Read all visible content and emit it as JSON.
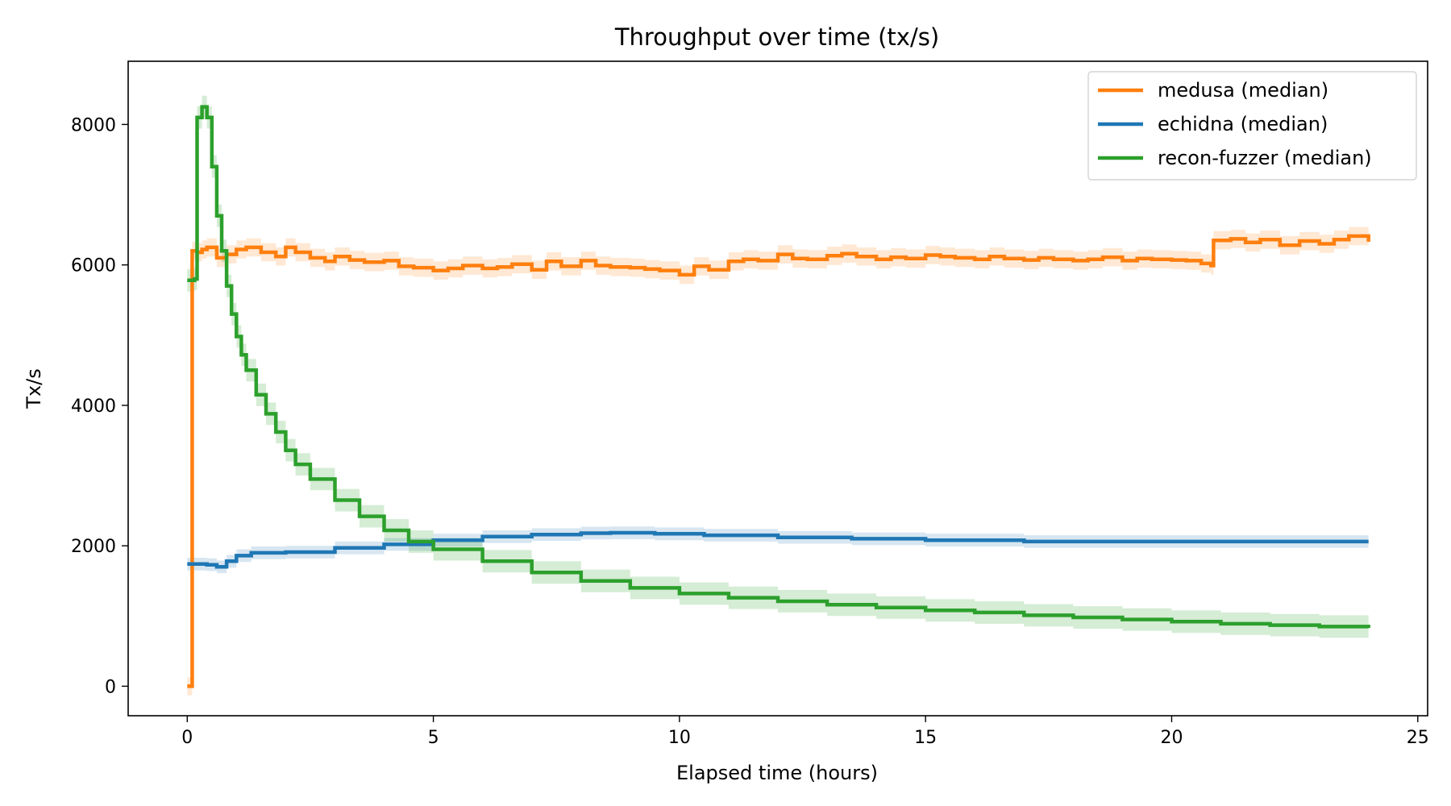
{
  "chart_data": {
    "type": "line",
    "title": "Throughput over time (tx/s)",
    "xlabel": "Elapsed time (hours)",
    "ylabel": "Tx/s",
    "xlim": [
      -1.2,
      25.2
    ],
    "ylim": [
      -420,
      8900
    ],
    "xticks": [
      0,
      5,
      10,
      15,
      20,
      25
    ],
    "yticks": [
      0,
      2000,
      4000,
      6000,
      8000
    ],
    "grid": false,
    "legend_position": "top-right",
    "step": true,
    "series": [
      {
        "name": "medusa (median)",
        "color": "#ff7f0e",
        "band_opacity": 0.18,
        "band_width": 130,
        "points": [
          [
            0,
            0
          ],
          [
            0.08,
            0
          ],
          [
            0.1,
            6200
          ],
          [
            0.2,
            6180
          ],
          [
            0.3,
            6220
          ],
          [
            0.4,
            6250
          ],
          [
            0.6,
            6100
          ],
          [
            0.8,
            6150
          ],
          [
            1.0,
            6220
          ],
          [
            1.2,
            6250
          ],
          [
            1.5,
            6180
          ],
          [
            1.8,
            6120
          ],
          [
            2.0,
            6250
          ],
          [
            2.2,
            6180
          ],
          [
            2.5,
            6100
          ],
          [
            2.8,
            6050
          ],
          [
            3.0,
            6120
          ],
          [
            3.3,
            6070
          ],
          [
            3.6,
            6040
          ],
          [
            4.0,
            6060
          ],
          [
            4.3,
            5980
          ],
          [
            4.6,
            5960
          ],
          [
            5.0,
            5920
          ],
          [
            5.3,
            5950
          ],
          [
            5.6,
            5990
          ],
          [
            6.0,
            5950
          ],
          [
            6.3,
            5970
          ],
          [
            6.6,
            6010
          ],
          [
            7.0,
            5930
          ],
          [
            7.3,
            6050
          ],
          [
            7.6,
            5980
          ],
          [
            8.0,
            6060
          ],
          [
            8.3,
            5990
          ],
          [
            8.6,
            5970
          ],
          [
            9.0,
            5960
          ],
          [
            9.3,
            5940
          ],
          [
            9.6,
            5920
          ],
          [
            10.0,
            5860
          ],
          [
            10.3,
            5980
          ],
          [
            10.6,
            5930
          ],
          [
            11.0,
            6050
          ],
          [
            11.3,
            6080
          ],
          [
            11.6,
            6060
          ],
          [
            12.0,
            6150
          ],
          [
            12.3,
            6090
          ],
          [
            12.6,
            6080
          ],
          [
            13.0,
            6130
          ],
          [
            13.3,
            6160
          ],
          [
            13.6,
            6120
          ],
          [
            14.0,
            6080
          ],
          [
            14.3,
            6110
          ],
          [
            14.6,
            6090
          ],
          [
            15.0,
            6140
          ],
          [
            15.3,
            6120
          ],
          [
            15.6,
            6100
          ],
          [
            16.0,
            6080
          ],
          [
            16.3,
            6120
          ],
          [
            16.6,
            6090
          ],
          [
            17.0,
            6070
          ],
          [
            17.3,
            6100
          ],
          [
            17.6,
            6080
          ],
          [
            18.0,
            6060
          ],
          [
            18.3,
            6080
          ],
          [
            18.6,
            6110
          ],
          [
            19.0,
            6060
          ],
          [
            19.3,
            6090
          ],
          [
            19.6,
            6080
          ],
          [
            20.0,
            6070
          ],
          [
            20.3,
            6060
          ],
          [
            20.6,
            6020
          ],
          [
            20.8,
            5990
          ],
          [
            20.85,
            6350
          ],
          [
            21.2,
            6370
          ],
          [
            21.5,
            6320
          ],
          [
            21.8,
            6360
          ],
          [
            22.2,
            6280
          ],
          [
            22.6,
            6340
          ],
          [
            23.0,
            6300
          ],
          [
            23.3,
            6360
          ],
          [
            23.6,
            6410
          ],
          [
            24.0,
            6330
          ]
        ]
      },
      {
        "name": "echidna (median)",
        "color": "#1f77b4",
        "band_opacity": 0.18,
        "band_width": 90,
        "points": [
          [
            0,
            1740
          ],
          [
            0.4,
            1730
          ],
          [
            0.6,
            1700
          ],
          [
            0.8,
            1780
          ],
          [
            1.0,
            1860
          ],
          [
            1.3,
            1900
          ],
          [
            2.0,
            1910
          ],
          [
            3.0,
            1970
          ],
          [
            4.0,
            2020
          ],
          [
            5.0,
            2080
          ],
          [
            6.0,
            2130
          ],
          [
            7.0,
            2160
          ],
          [
            8.0,
            2180
          ],
          [
            8.6,
            2185
          ],
          [
            9.5,
            2170
          ],
          [
            10.5,
            2150
          ],
          [
            12.0,
            2120
          ],
          [
            13.5,
            2100
          ],
          [
            15.0,
            2080
          ],
          [
            17.0,
            2060
          ],
          [
            19.0,
            2060
          ],
          [
            21.0,
            2060
          ],
          [
            24.0,
            2060
          ]
        ]
      },
      {
        "name": "recon-fuzzer (median)",
        "color": "#2ca02c",
        "band_opacity": 0.2,
        "band_width": 160,
        "points": [
          [
            0,
            5780
          ],
          [
            0.15,
            5800
          ],
          [
            0.2,
            8100
          ],
          [
            0.3,
            8250
          ],
          [
            0.4,
            8100
          ],
          [
            0.5,
            7400
          ],
          [
            0.6,
            6700
          ],
          [
            0.7,
            6200
          ],
          [
            0.8,
            5700
          ],
          [
            0.9,
            5300
          ],
          [
            1.0,
            4980
          ],
          [
            1.1,
            4720
          ],
          [
            1.2,
            4500
          ],
          [
            1.4,
            4150
          ],
          [
            1.6,
            3880
          ],
          [
            1.8,
            3620
          ],
          [
            2.0,
            3360
          ],
          [
            2.2,
            3160
          ],
          [
            2.5,
            2950
          ],
          [
            3.0,
            2650
          ],
          [
            3.5,
            2420
          ],
          [
            4.0,
            2220
          ],
          [
            4.5,
            2060
          ],
          [
            5.0,
            1950
          ],
          [
            6.0,
            1780
          ],
          [
            7.0,
            1620
          ],
          [
            8.0,
            1500
          ],
          [
            9.0,
            1400
          ],
          [
            10.0,
            1320
          ],
          [
            11.0,
            1260
          ],
          [
            12.0,
            1210
          ],
          [
            13.0,
            1160
          ],
          [
            14.0,
            1120
          ],
          [
            15.0,
            1080
          ],
          [
            16.0,
            1050
          ],
          [
            17.0,
            1010
          ],
          [
            18.0,
            980
          ],
          [
            19.0,
            950
          ],
          [
            20.0,
            920
          ],
          [
            21.0,
            890
          ],
          [
            22.0,
            870
          ],
          [
            23.0,
            850
          ],
          [
            24.0,
            830
          ]
        ]
      }
    ]
  }
}
